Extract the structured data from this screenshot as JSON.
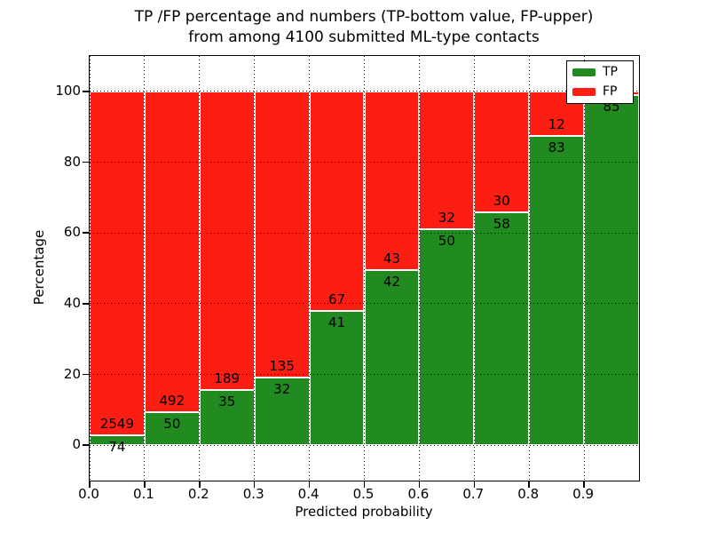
{
  "figure": {
    "title_line1": "TP /FP percentage and numbers (TP-bottom value, FP-upper)",
    "title_line2": "from among 4100 submitted ML-type contacts"
  },
  "axes": {
    "xlabel": "Predicted probability",
    "ylabel": "Percentage",
    "x_tick_labels": [
      "0.0",
      "0.1",
      "0.2",
      "0.3",
      "0.4",
      "0.5",
      "0.6",
      "0.7",
      "0.8",
      "0.9"
    ],
    "x_tick_values": [
      0.0,
      0.1,
      0.2,
      0.3,
      0.4,
      0.5,
      0.6,
      0.7,
      0.8,
      0.9
    ],
    "y_tick_labels": [
      "0",
      "20",
      "40",
      "60",
      "80",
      "100"
    ],
    "y_tick_values": [
      0,
      20,
      40,
      60,
      80,
      100
    ]
  },
  "legend": {
    "entries": [
      {
        "label": "TP",
        "color": "#218a21"
      },
      {
        "label": "FP",
        "color": "#fc1d13"
      }
    ]
  },
  "chart_data": {
    "type": "bar",
    "stacked": true,
    "normalized_to_percent": true,
    "title": "TP /FP percentage and numbers (TP-bottom value, FP-upper) from among 4100 submitted ML-type contacts",
    "xlabel": "Predicted probability",
    "ylabel": "Percentage",
    "xlim": [
      0.0,
      1.0
    ],
    "ylim": [
      -10,
      110
    ],
    "grid": "dotted-black",
    "bar_edge_color": "#ffffff",
    "legend_position": "upper right",
    "bin_width": 0.1,
    "bin_starts": [
      0.0,
      0.1,
      0.2,
      0.3,
      0.4,
      0.5,
      0.6,
      0.7,
      0.8,
      0.9
    ],
    "series": [
      {
        "name": "TP",
        "color": "#218a21",
        "counts": [
          74,
          50,
          35,
          32,
          41,
          42,
          50,
          58,
          83,
          85
        ]
      },
      {
        "name": "FP",
        "color": "#fc1d13",
        "counts": [
          2549,
          492,
          189,
          135,
          67,
          43,
          32,
          30,
          12,
          1
        ]
      }
    ],
    "tp_percent_of_bin": [
      2.82,
      9.23,
      15.63,
      19.16,
      37.96,
      49.41,
      60.98,
      65.91,
      87.37,
      98.84
    ],
    "value_labels": {
      "tp": [
        "74",
        "50",
        "35",
        "32",
        "41",
        "42",
        "50",
        "58",
        "83",
        "85"
      ],
      "fp": [
        "2549",
        "492",
        "189",
        "135",
        "67",
        "43",
        "32",
        "30",
        "12",
        ""
      ]
    },
    "notes": "FP count label of last bin is hidden behind the legend box; its red sliver is visible at top of last bar"
  }
}
